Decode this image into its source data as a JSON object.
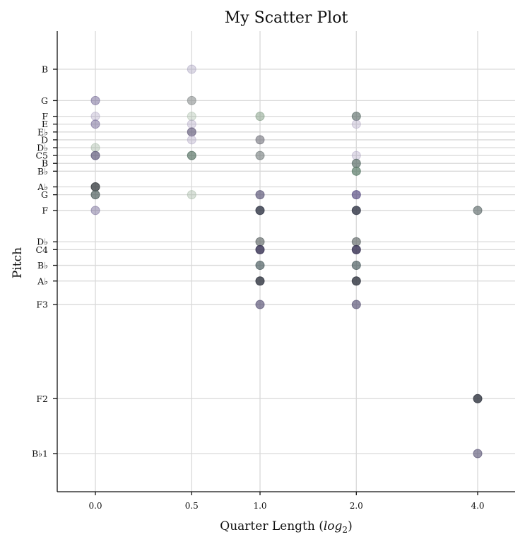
{
  "chart_data": {
    "type": "scatter",
    "title": "My Scatter Plot",
    "xlabel": "Quarter Length (log2)",
    "ylabel": "Pitch",
    "x_ticks": [
      "0.0",
      "0.5",
      "1.0",
      "2.0",
      "4.0"
    ],
    "x_values": [
      0.0,
      0.5,
      1.0,
      2.0,
      4.0
    ],
    "y_ticks": [
      {
        "label": "B",
        "midi": 71
      },
      {
        "label": "G",
        "midi": 67
      },
      {
        "label": "F",
        "midi": 65
      },
      {
        "label": "E",
        "midi": 64
      },
      {
        "label": "E♭",
        "midi": 63
      },
      {
        "label": "D",
        "midi": 62
      },
      {
        "label": "D♭",
        "midi": 61
      },
      {
        "label": "C5",
        "midi": 60
      },
      {
        "label": "B",
        "midi": 59
      },
      {
        "label": "B♭",
        "midi": 58
      },
      {
        "label": "A♭",
        "midi": 56
      },
      {
        "label": "G",
        "midi": 55
      },
      {
        "label": "F",
        "midi": 53
      },
      {
        "label": "D♭",
        "midi": 49
      },
      {
        "label": "C4",
        "midi": 48
      },
      {
        "label": "B♭",
        "midi": 46
      },
      {
        "label": "A♭",
        "midi": 44
      },
      {
        "label": "F3",
        "midi": 41
      },
      {
        "label": "F2",
        "midi": 29
      },
      {
        "label": "B♭1",
        "midi": 22
      }
    ],
    "ylim_midi": [
      17,
      76
    ],
    "grid": true,
    "points": [
      {
        "x": 0.5,
        "midi": 71,
        "color": "#9c92b5",
        "alpha": 0.35
      },
      {
        "x": 0.0,
        "midi": 67,
        "color": "#7a6f9a",
        "alpha": 0.55
      },
      {
        "x": 0.5,
        "midi": 67,
        "color": "#8a9090",
        "alpha": 0.6
      },
      {
        "x": 0.0,
        "midi": 65,
        "color": "#a69cbd",
        "alpha": 0.35
      },
      {
        "x": 0.5,
        "midi": 65,
        "color": "#9fb59f",
        "alpha": 0.35
      },
      {
        "x": 1.0,
        "midi": 65,
        "color": "#86a088",
        "alpha": 0.55
      },
      {
        "x": 2.0,
        "midi": 65,
        "color": "#5d6f6a",
        "alpha": 0.65
      },
      {
        "x": 0.0,
        "midi": 64,
        "color": "#7a6f9a",
        "alpha": 0.55
      },
      {
        "x": 0.5,
        "midi": 64,
        "color": "#a69cbd",
        "alpha": 0.35
      },
      {
        "x": 2.0,
        "midi": 64,
        "color": "#a69cbd",
        "alpha": 0.35
      },
      {
        "x": 0.5,
        "midi": 63,
        "color": "#6a6280",
        "alpha": 0.7
      },
      {
        "x": 0.5,
        "midi": 62,
        "color": "#a69cbd",
        "alpha": 0.35
      },
      {
        "x": 1.0,
        "midi": 62,
        "color": "#70707a",
        "alpha": 0.6
      },
      {
        "x": 0.0,
        "midi": 61,
        "color": "#9fb59f",
        "alpha": 0.4
      },
      {
        "x": 0.0,
        "midi": 60,
        "color": "#5f5a7a",
        "alpha": 0.7
      },
      {
        "x": 0.5,
        "midi": 60,
        "color": "#4f6b5c",
        "alpha": 0.65
      },
      {
        "x": 1.0,
        "midi": 60,
        "color": "#717a7a",
        "alpha": 0.6
      },
      {
        "x": 2.0,
        "midi": 60,
        "color": "#a69cbd",
        "alpha": 0.35
      },
      {
        "x": 2.0,
        "midi": 59,
        "color": "#5d6f6a",
        "alpha": 0.7
      },
      {
        "x": 2.0,
        "midi": 58,
        "color": "#5a7a68",
        "alpha": 0.7
      },
      {
        "x": 0.0,
        "midi": 56,
        "color": "#3f4447",
        "alpha": 0.8
      },
      {
        "x": 0.0,
        "midi": 55,
        "color": "#4f5f5e",
        "alpha": 0.7
      },
      {
        "x": 0.5,
        "midi": 55,
        "color": "#9fb59f",
        "alpha": 0.4
      },
      {
        "x": 1.0,
        "midi": 55,
        "color": "#5f5a7a",
        "alpha": 0.7
      },
      {
        "x": 2.0,
        "midi": 55,
        "color": "#5a4f85",
        "alpha": 0.7
      },
      {
        "x": 0.0,
        "midi": 53,
        "color": "#7a6f9a",
        "alpha": 0.5
      },
      {
        "x": 1.0,
        "midi": 53,
        "color": "#3b3f4f",
        "alpha": 0.85
      },
      {
        "x": 2.0,
        "midi": 53,
        "color": "#3b3f4f",
        "alpha": 0.85
      },
      {
        "x": 4.0,
        "midi": 53,
        "color": "#5d6a6a",
        "alpha": 0.65
      },
      {
        "x": 1.0,
        "midi": 49,
        "color": "#5d6566",
        "alpha": 0.65
      },
      {
        "x": 2.0,
        "midi": 49,
        "color": "#5d6566",
        "alpha": 0.65
      },
      {
        "x": 1.0,
        "midi": 48,
        "color": "#3f3a5a",
        "alpha": 0.85
      },
      {
        "x": 2.0,
        "midi": 48,
        "color": "#3f3a5a",
        "alpha": 0.85
      },
      {
        "x": 1.0,
        "midi": 46,
        "color": "#4f5f62",
        "alpha": 0.7
      },
      {
        "x": 2.0,
        "midi": 46,
        "color": "#4f5f62",
        "alpha": 0.7
      },
      {
        "x": 1.0,
        "midi": 44,
        "color": "#3b3f4a",
        "alpha": 0.85
      },
      {
        "x": 2.0,
        "midi": 44,
        "color": "#3b3f4a",
        "alpha": 0.85
      },
      {
        "x": 1.0,
        "midi": 41,
        "color": "#5f5a7a",
        "alpha": 0.7
      },
      {
        "x": 2.0,
        "midi": 41,
        "color": "#5f5a7a",
        "alpha": 0.7
      },
      {
        "x": 4.0,
        "midi": 29,
        "color": "#3b3f4a",
        "alpha": 0.85
      },
      {
        "x": 4.0,
        "midi": 22,
        "color": "#5f5a7a",
        "alpha": 0.65
      }
    ]
  }
}
